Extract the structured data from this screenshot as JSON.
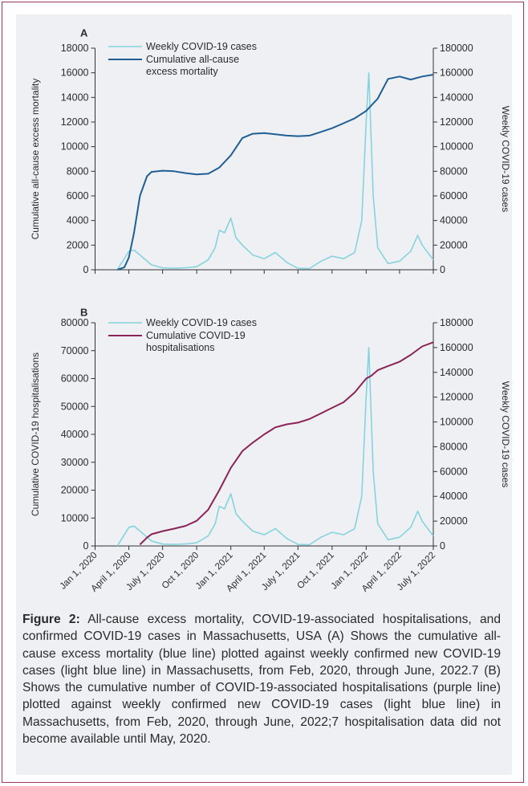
{
  "caption": {
    "label": "Figure 2:",
    "text": " All-cause excess mortality, COVID-19-associated hospitalisations, and confirmed COVID-19 cases in Massachusetts, USA (A) Shows the cumulative all-cause excess mortality (blue line) plotted against weekly confirmed new COVID-19 cases (light blue line) in Massachusetts, from Feb, 2020, through June, 2022.7 (B) Shows the cumulative number of COVID-19-associated hospitalisations (purple line) plotted against weekly confirmed new COVID-19 cases (light blue line) in Massachusetts, from Feb, 2020, through June, 2022;7 hospitalisation data did not become available until May, 2020."
  },
  "colors": {
    "weekly_cases": "#86d3e0",
    "cumulative_mortality": "#1f5f96",
    "cumulative_hospitalisations": "#8a2358",
    "axis": "#333333",
    "panel_background": "#eef0f3",
    "frame_border": "#a0396a"
  },
  "chart_data": [
    {
      "panel": "A",
      "type": "line",
      "ylabel": "Cumulative all-cause excess mortality",
      "ylabel_right": "Weekly COVID-19 cases",
      "ylim": [
        0,
        18000
      ],
      "ylim_right": [
        0,
        180000
      ],
      "yticks": [
        "0",
        "2000",
        "4000",
        "6000",
        "8000",
        "10000",
        "12000",
        "14000",
        "16000",
        "18000"
      ],
      "yticks_right": [
        "0",
        "20000",
        "40000",
        "60000",
        "80000",
        "100000",
        "120000",
        "140000",
        "160000",
        "180000"
      ],
      "legend": [
        "Weekly COVID-19 cases",
        "Cumulative all-cause",
        "excess mortality"
      ],
      "legend_position": "top-left",
      "series": [
        {
          "name": "Weekly COVID-19 cases",
          "axis": "right",
          "x": [
            "2020-03-01",
            "2020-04-01",
            "2020-04-15",
            "2020-05-01",
            "2020-06-01",
            "2020-07-01",
            "2020-08-01",
            "2020-09-01",
            "2020-10-01",
            "2020-11-01",
            "2020-11-20",
            "2020-12-01",
            "2020-12-15",
            "2021-01-01",
            "2021-01-15",
            "2021-02-01",
            "2021-03-01",
            "2021-04-01",
            "2021-05-01",
            "2021-06-01",
            "2021-07-01",
            "2021-08-01",
            "2021-09-01",
            "2021-10-01",
            "2021-11-01",
            "2021-12-01",
            "2021-12-20",
            "2022-01-01",
            "2022-01-08",
            "2022-01-20",
            "2022-02-01",
            "2022-03-01",
            "2022-04-01",
            "2022-05-01",
            "2022-05-20",
            "2022-06-01",
            "2022-07-01"
          ],
          "values": [
            0,
            15000,
            16000,
            12000,
            4000,
            1500,
            1200,
            1600,
            2500,
            8000,
            18000,
            32000,
            30000,
            42000,
            26000,
            20000,
            12000,
            9000,
            14000,
            6000,
            1200,
            1000,
            7000,
            11000,
            9000,
            14000,
            40000,
            120000,
            160000,
            60000,
            18000,
            5000,
            7000,
            15000,
            28000,
            20000,
            8000
          ]
        },
        {
          "name": "Cumulative all-cause excess mortality",
          "axis": "left",
          "x": [
            "2020-03-01",
            "2020-03-20",
            "2020-04-01",
            "2020-04-15",
            "2020-05-01",
            "2020-05-20",
            "2020-06-01",
            "2020-07-01",
            "2020-08-01",
            "2020-09-01",
            "2020-10-01",
            "2020-11-01",
            "2020-12-01",
            "2021-01-01",
            "2021-02-01",
            "2021-03-01",
            "2021-04-01",
            "2021-05-01",
            "2021-06-01",
            "2021-07-01",
            "2021-08-01",
            "2021-09-01",
            "2021-10-01",
            "2021-11-01",
            "2021-12-01",
            "2022-01-01",
            "2022-02-01",
            "2022-03-01",
            "2022-04-01",
            "2022-05-01",
            "2022-06-01",
            "2022-07-01"
          ],
          "values": [
            0,
            200,
            1000,
            3000,
            6000,
            7600,
            7950,
            8050,
            8000,
            7850,
            7750,
            7800,
            8300,
            9300,
            10700,
            11050,
            11100,
            11000,
            10900,
            10850,
            10900,
            11200,
            11500,
            11900,
            12300,
            12900,
            13900,
            15500,
            15700,
            15450,
            15700,
            15850
          ]
        }
      ]
    },
    {
      "panel": "B",
      "type": "line",
      "ylabel": "Cumulative COVID-19 hospitalisations",
      "ylabel_right": "Weekly COVID-19 cases",
      "ylim": [
        0,
        80000
      ],
      "ylim_right": [
        0,
        180000
      ],
      "yticks": [
        "0",
        "10000",
        "20000",
        "30000",
        "40000",
        "50000",
        "60000",
        "70000",
        "80000"
      ],
      "yticks_right": [
        "0",
        "20000",
        "40000",
        "60000",
        "80000",
        "100000",
        "120000",
        "140000",
        "160000",
        "180000"
      ],
      "xticks": [
        "Jan 1, 2020",
        "April 1, 2020",
        "July 1, 2020",
        "Oct 1, 2020",
        "Jan 1, 2021",
        "April 1, 2021",
        "July 1, 2021",
        "Oct 1, 2021",
        "Jan 1, 2022",
        "April 1, 2022",
        "July 1, 2022"
      ],
      "legend": [
        "Weekly COVID-19 cases",
        "Cumulative COVID-19",
        "hospitalisations"
      ],
      "legend_position": "top-left",
      "series": [
        {
          "name": "Weekly COVID-19 cases",
          "axis": "right",
          "x": [
            "2020-03-01",
            "2020-04-01",
            "2020-04-15",
            "2020-05-01",
            "2020-06-01",
            "2020-07-01",
            "2020-08-01",
            "2020-09-01",
            "2020-10-01",
            "2020-11-01",
            "2020-11-20",
            "2020-12-01",
            "2020-12-15",
            "2021-01-01",
            "2021-01-15",
            "2021-02-01",
            "2021-03-01",
            "2021-04-01",
            "2021-05-01",
            "2021-06-01",
            "2021-07-01",
            "2021-08-01",
            "2021-09-01",
            "2021-10-01",
            "2021-11-01",
            "2021-12-01",
            "2021-12-20",
            "2022-01-01",
            "2022-01-08",
            "2022-01-20",
            "2022-02-01",
            "2022-03-01",
            "2022-04-01",
            "2022-05-01",
            "2022-05-20",
            "2022-06-01",
            "2022-07-01"
          ],
          "values": [
            0,
            15000,
            16000,
            12000,
            4000,
            1500,
            1200,
            1600,
            2500,
            8000,
            18000,
            32000,
            30000,
            42000,
            26000,
            20000,
            12000,
            9000,
            14000,
            6000,
            1200,
            1000,
            7000,
            11000,
            9000,
            14000,
            40000,
            120000,
            160000,
            60000,
            18000,
            5000,
            7000,
            15000,
            28000,
            20000,
            8000
          ]
        },
        {
          "name": "Cumulative COVID-19 hospitalisations",
          "axis": "left",
          "x": [
            "2020-05-01",
            "2020-05-20",
            "2020-06-01",
            "2020-07-01",
            "2020-08-01",
            "2020-09-01",
            "2020-10-01",
            "2020-11-01",
            "2020-12-01",
            "2021-01-01",
            "2021-02-01",
            "2021-03-01",
            "2021-04-01",
            "2021-05-01",
            "2021-06-01",
            "2021-07-01",
            "2021-08-01",
            "2021-09-01",
            "2021-10-01",
            "2021-11-01",
            "2021-12-01",
            "2022-01-01",
            "2022-01-15",
            "2022-02-01",
            "2022-03-01",
            "2022-04-01",
            "2022-05-01",
            "2022-06-01",
            "2022-07-01"
          ],
          "values": [
            500,
            3000,
            4200,
            5300,
            6200,
            7200,
            9000,
            13000,
            20000,
            28000,
            34000,
            37000,
            40000,
            42500,
            43600,
            44200,
            45500,
            47500,
            49500,
            51500,
            55000,
            60000,
            61000,
            63000,
            64500,
            66000,
            68500,
            71500,
            73000
          ]
        }
      ]
    }
  ]
}
